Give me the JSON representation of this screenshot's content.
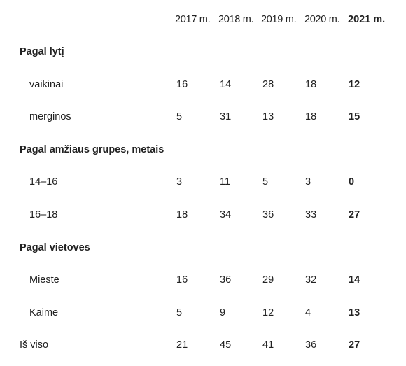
{
  "table": {
    "columns": [
      "2017 m.",
      "2018 m.",
      "2019 m.",
      "2020 m.",
      "2021 m."
    ],
    "sections": [
      {
        "title": "Pagal lytį",
        "rows": [
          {
            "label": "vaikinai",
            "values": [
              16,
              14,
              28,
              18,
              12
            ]
          },
          {
            "label": "merginos",
            "values": [
              5,
              31,
              13,
              18,
              15
            ]
          }
        ]
      },
      {
        "title": "Pagal amžiaus grupes, metais",
        "rows": [
          {
            "label": "14–16",
            "values": [
              3,
              11,
              5,
              3,
              0
            ]
          },
          {
            "label": "16–18",
            "values": [
              18,
              34,
              36,
              33,
              27
            ]
          }
        ]
      },
      {
        "title": "Pagal vietoves",
        "rows": [
          {
            "label": "Mieste",
            "values": [
              16,
              36,
              29,
              32,
              14
            ]
          },
          {
            "label": "Kaime",
            "values": [
              5,
              9,
              12,
              4,
              13
            ]
          }
        ]
      }
    ],
    "total": {
      "label": "Iš viso",
      "values": [
        21,
        45,
        41,
        36,
        27
      ]
    }
  }
}
